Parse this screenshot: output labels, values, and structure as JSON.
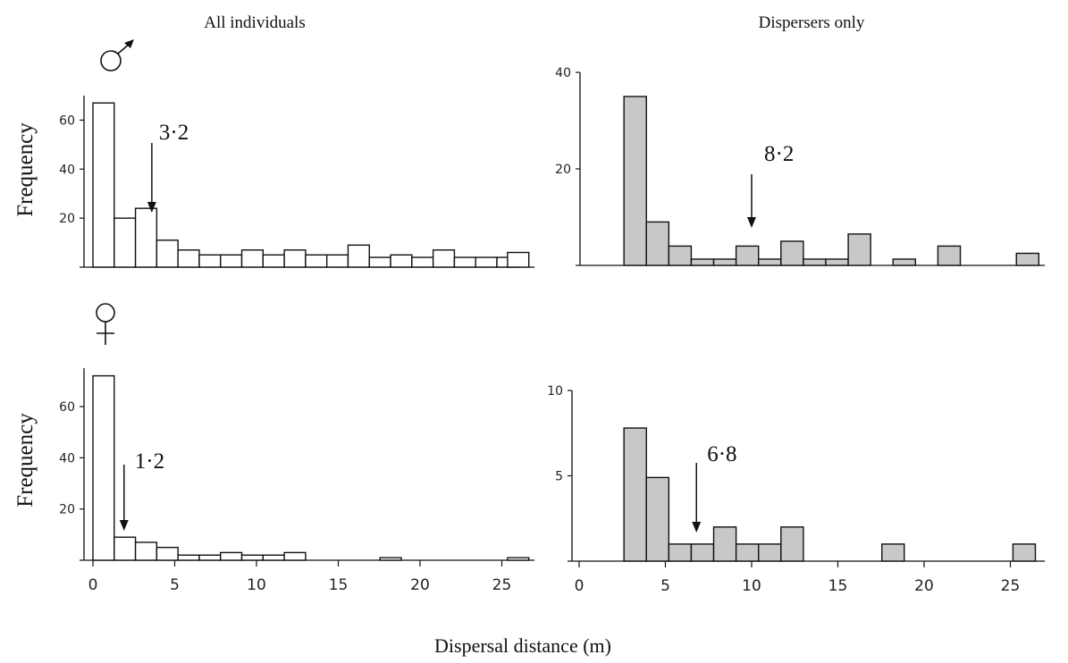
{
  "headers": {
    "left": "All individuals",
    "right": "Dispersers only"
  },
  "xlabel": "Dispersal distance (m)",
  "ylabel": "Frequency",
  "symbols": {
    "male": "male-symbol-icon",
    "female": "female-symbol-icon"
  },
  "colors": {
    "all_fill": "#ffffff",
    "dispersers_fill": "#c8c8c8",
    "stroke": "#111111"
  },
  "chart_data": [
    {
      "id": "male-all",
      "type": "bar",
      "panel": "All individuals",
      "sex": "male",
      "ylabel": "Frequency",
      "xlim": [
        0,
        27
      ],
      "ylim": [
        0,
        70
      ],
      "yticks": [
        20,
        40,
        60
      ],
      "bin_width": 1.3,
      "x": [
        0.65,
        1.95,
        3.25,
        4.55,
        5.85,
        7.15,
        8.45,
        9.75,
        11.05,
        12.35,
        13.65,
        14.95,
        16.25,
        17.55,
        18.85,
        20.15,
        21.45,
        22.75,
        24.05,
        25.35,
        26.0
      ],
      "values": [
        67,
        20,
        24,
        11,
        7,
        5,
        5,
        7,
        5,
        7,
        5,
        5,
        9,
        4,
        5,
        4,
        7,
        4,
        4,
        4,
        6
      ],
      "annotation": {
        "text": "3·2",
        "x": 3.6
      }
    },
    {
      "id": "male-dispersers",
      "type": "bar",
      "panel": "Dispersers only",
      "sex": "male",
      "ylabel": "",
      "xlim": [
        0,
        27
      ],
      "ylim": [
        0,
        40
      ],
      "yticks": [
        20,
        40
      ],
      "bin_width": 1.3,
      "x": [
        3.25,
        4.55,
        5.85,
        7.15,
        8.45,
        9.75,
        11.05,
        12.35,
        13.65,
        14.95,
        16.25,
        18.85,
        21.45,
        26.0
      ],
      "values": [
        35,
        9,
        4,
        1.3,
        1.3,
        4,
        1.3,
        5,
        1.3,
        1.3,
        6.5,
        1.3,
        4,
        2.5
      ],
      "annotation": {
        "text": "8·2",
        "x": 10.0
      }
    },
    {
      "id": "female-all",
      "type": "bar",
      "panel": "All individuals",
      "sex": "female",
      "ylabel": "Frequency",
      "xlim": [
        0,
        27
      ],
      "ylim": [
        0,
        75
      ],
      "yticks": [
        20,
        40,
        60
      ],
      "bin_width": 1.3,
      "x": [
        0.65,
        1.95,
        3.25,
        4.55,
        5.85,
        7.15,
        8.45,
        9.75,
        11.05,
        12.35,
        18.2,
        26.0
      ],
      "values": [
        72,
        9,
        7,
        5,
        2,
        2,
        3,
        2,
        2,
        3,
        1,
        1
      ],
      "annotation": {
        "text": "1·2",
        "x": 1.9
      }
    },
    {
      "id": "female-dispersers",
      "type": "bar",
      "panel": "Dispersers only",
      "sex": "female",
      "ylabel": "",
      "xlim": [
        0,
        27
      ],
      "ylim": [
        0,
        10
      ],
      "yticks": [
        5,
        10
      ],
      "bin_width": 1.3,
      "x": [
        3.25,
        4.55,
        5.85,
        7.15,
        8.45,
        9.75,
        11.05,
        12.35,
        18.2,
        25.8
      ],
      "values": [
        7.8,
        4.9,
        1,
        1,
        2,
        1,
        1,
        2,
        1,
        1
      ],
      "annotation": {
        "text": "6·8",
        "x": 6.8
      }
    }
  ],
  "x_ticks": [
    0,
    5,
    10,
    15,
    20,
    25
  ]
}
